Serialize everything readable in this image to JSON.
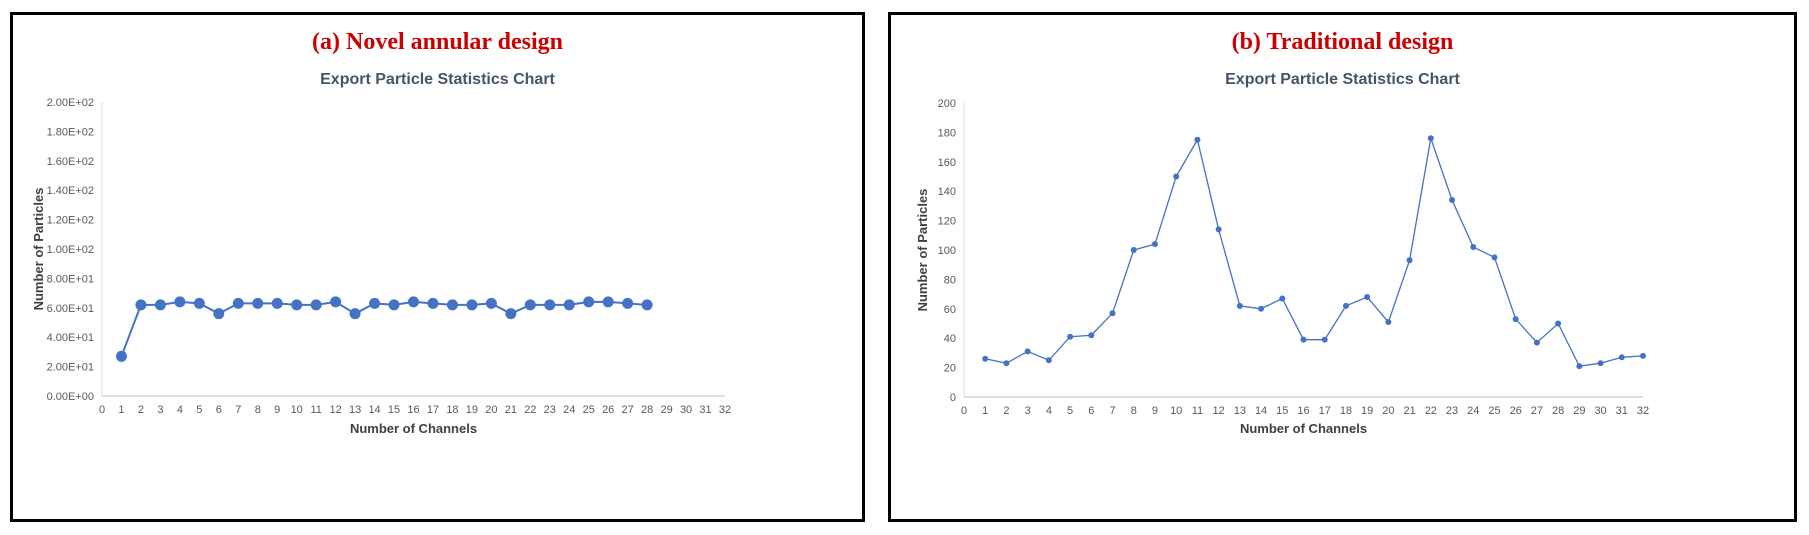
{
  "panels": [
    {
      "heading": "(a) Novel annular design",
      "marker": "large",
      "chart_data": {
        "type": "line",
        "title": "Export Particle Statistics Chart",
        "xlabel": "Number of Channels",
        "ylabel": "Number of Particles",
        "xlim": [
          0,
          32
        ],
        "ylim": [
          0,
          200
        ],
        "x_ticks": [
          "0",
          "1",
          "2",
          "3",
          "4",
          "5",
          "6",
          "7",
          "8",
          "9",
          "10",
          "11",
          "12",
          "13",
          "14",
          "15",
          "16",
          "17",
          "18",
          "19",
          "20",
          "21",
          "22",
          "23",
          "24",
          "25",
          "26",
          "27",
          "28",
          "29",
          "30",
          "31",
          "32"
        ],
        "y_ticks": [
          "0.00E+00",
          "2.00E+01",
          "4.00E+01",
          "6.00E+01",
          "8.00E+01",
          "1.00E+02",
          "1.20E+02",
          "1.40E+02",
          "1.60E+02",
          "1.80E+02",
          "2.00E+02"
        ],
        "grid": false,
        "series": [
          {
            "color": "#4472c4",
            "x": [
              1,
              2,
              3,
              4,
              5,
              6,
              7,
              8,
              9,
              10,
              11,
              12,
              13,
              14,
              15,
              16,
              17,
              18,
              19,
              20,
              21,
              22,
              23,
              24,
              25,
              26,
              27,
              28
            ],
            "values": [
              27,
              62,
              62,
              64,
              63,
              56,
              63,
              63,
              63,
              62,
              62,
              64,
              56,
              63,
              62,
              64,
              63,
              62,
              62,
              63,
              56,
              62,
              62,
              62,
              64,
              64,
              63,
              62
            ]
          }
        ]
      }
    },
    {
      "heading": "(b) Traditional design",
      "marker": "small",
      "chart_data": {
        "type": "line",
        "title": "Export Particle Statistics Chart",
        "xlabel": "Number of Channels",
        "ylabel": "Number of Particles",
        "xlim": [
          0,
          32
        ],
        "ylim": [
          0,
          200
        ],
        "x_ticks": [
          "0",
          "1",
          "2",
          "3",
          "4",
          "5",
          "6",
          "7",
          "8",
          "9",
          "10",
          "11",
          "12",
          "13",
          "14",
          "15",
          "16",
          "17",
          "18",
          "19",
          "20",
          "21",
          "22",
          "23",
          "24",
          "25",
          "26",
          "27",
          "28",
          "29",
          "30",
          "31",
          "32"
        ],
        "y_ticks": [
          "0",
          "20",
          "40",
          "60",
          "80",
          "100",
          "120",
          "140",
          "160",
          "180",
          "200"
        ],
        "grid": false,
        "series": [
          {
            "color": "#4472c4",
            "x": [
              1,
              2,
              3,
              4,
              5,
              6,
              7,
              8,
              9,
              10,
              11,
              12,
              13,
              14,
              15,
              16,
              17,
              18,
              19,
              20,
              21,
              22,
              23,
              24,
              25,
              26,
              27,
              28,
              29,
              30,
              31,
              32
            ],
            "values": [
              26,
              23,
              31,
              25,
              41,
              42,
              57,
              100,
              104,
              150,
              175,
              114,
              62,
              60,
              67,
              39,
              39,
              62,
              68,
              51,
              93,
              176,
              134,
              102,
              95,
              53,
              37,
              50,
              21,
              23,
              27,
              28
            ]
          }
        ]
      }
    }
  ]
}
